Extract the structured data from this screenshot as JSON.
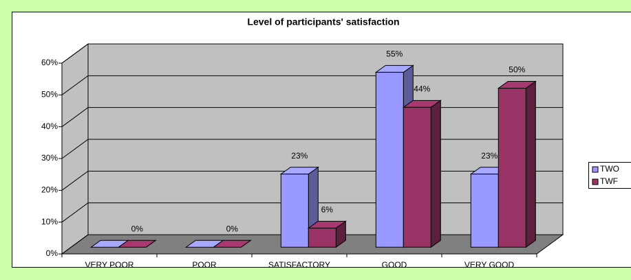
{
  "chart_data": {
    "type": "bar3d",
    "title": "Level of participants' satisfaction",
    "categories": [
      "VERY POOR",
      "POOR",
      "SATISFACTORY",
      "GOOD",
      "VERY GOOD"
    ],
    "series": [
      {
        "name": "TWO",
        "color": "#9999ff",
        "values": [
          0,
          0,
          23,
          55,
          23
        ],
        "value_labels": [
          null,
          null,
          "23%",
          "55%",
          "23%"
        ]
      },
      {
        "name": "TWF",
        "color": "#993366",
        "values": [
          0,
          0,
          6,
          44,
          50
        ],
        "value_labels": [
          "0%",
          "0%",
          "6%",
          "44%",
          "50%"
        ]
      }
    ],
    "ylim": [
      0,
      60
    ],
    "yticks": [
      {
        "value": 0,
        "label": "0%"
      },
      {
        "value": 10,
        "label": "10%"
      },
      {
        "value": 20,
        "label": "20%"
      },
      {
        "value": 30,
        "label": "30%"
      },
      {
        "value": 40,
        "label": "40%"
      },
      {
        "value": 50,
        "label": "50%"
      },
      {
        "value": 60,
        "label": "60%"
      }
    ],
    "grid": true,
    "legend": "right"
  }
}
